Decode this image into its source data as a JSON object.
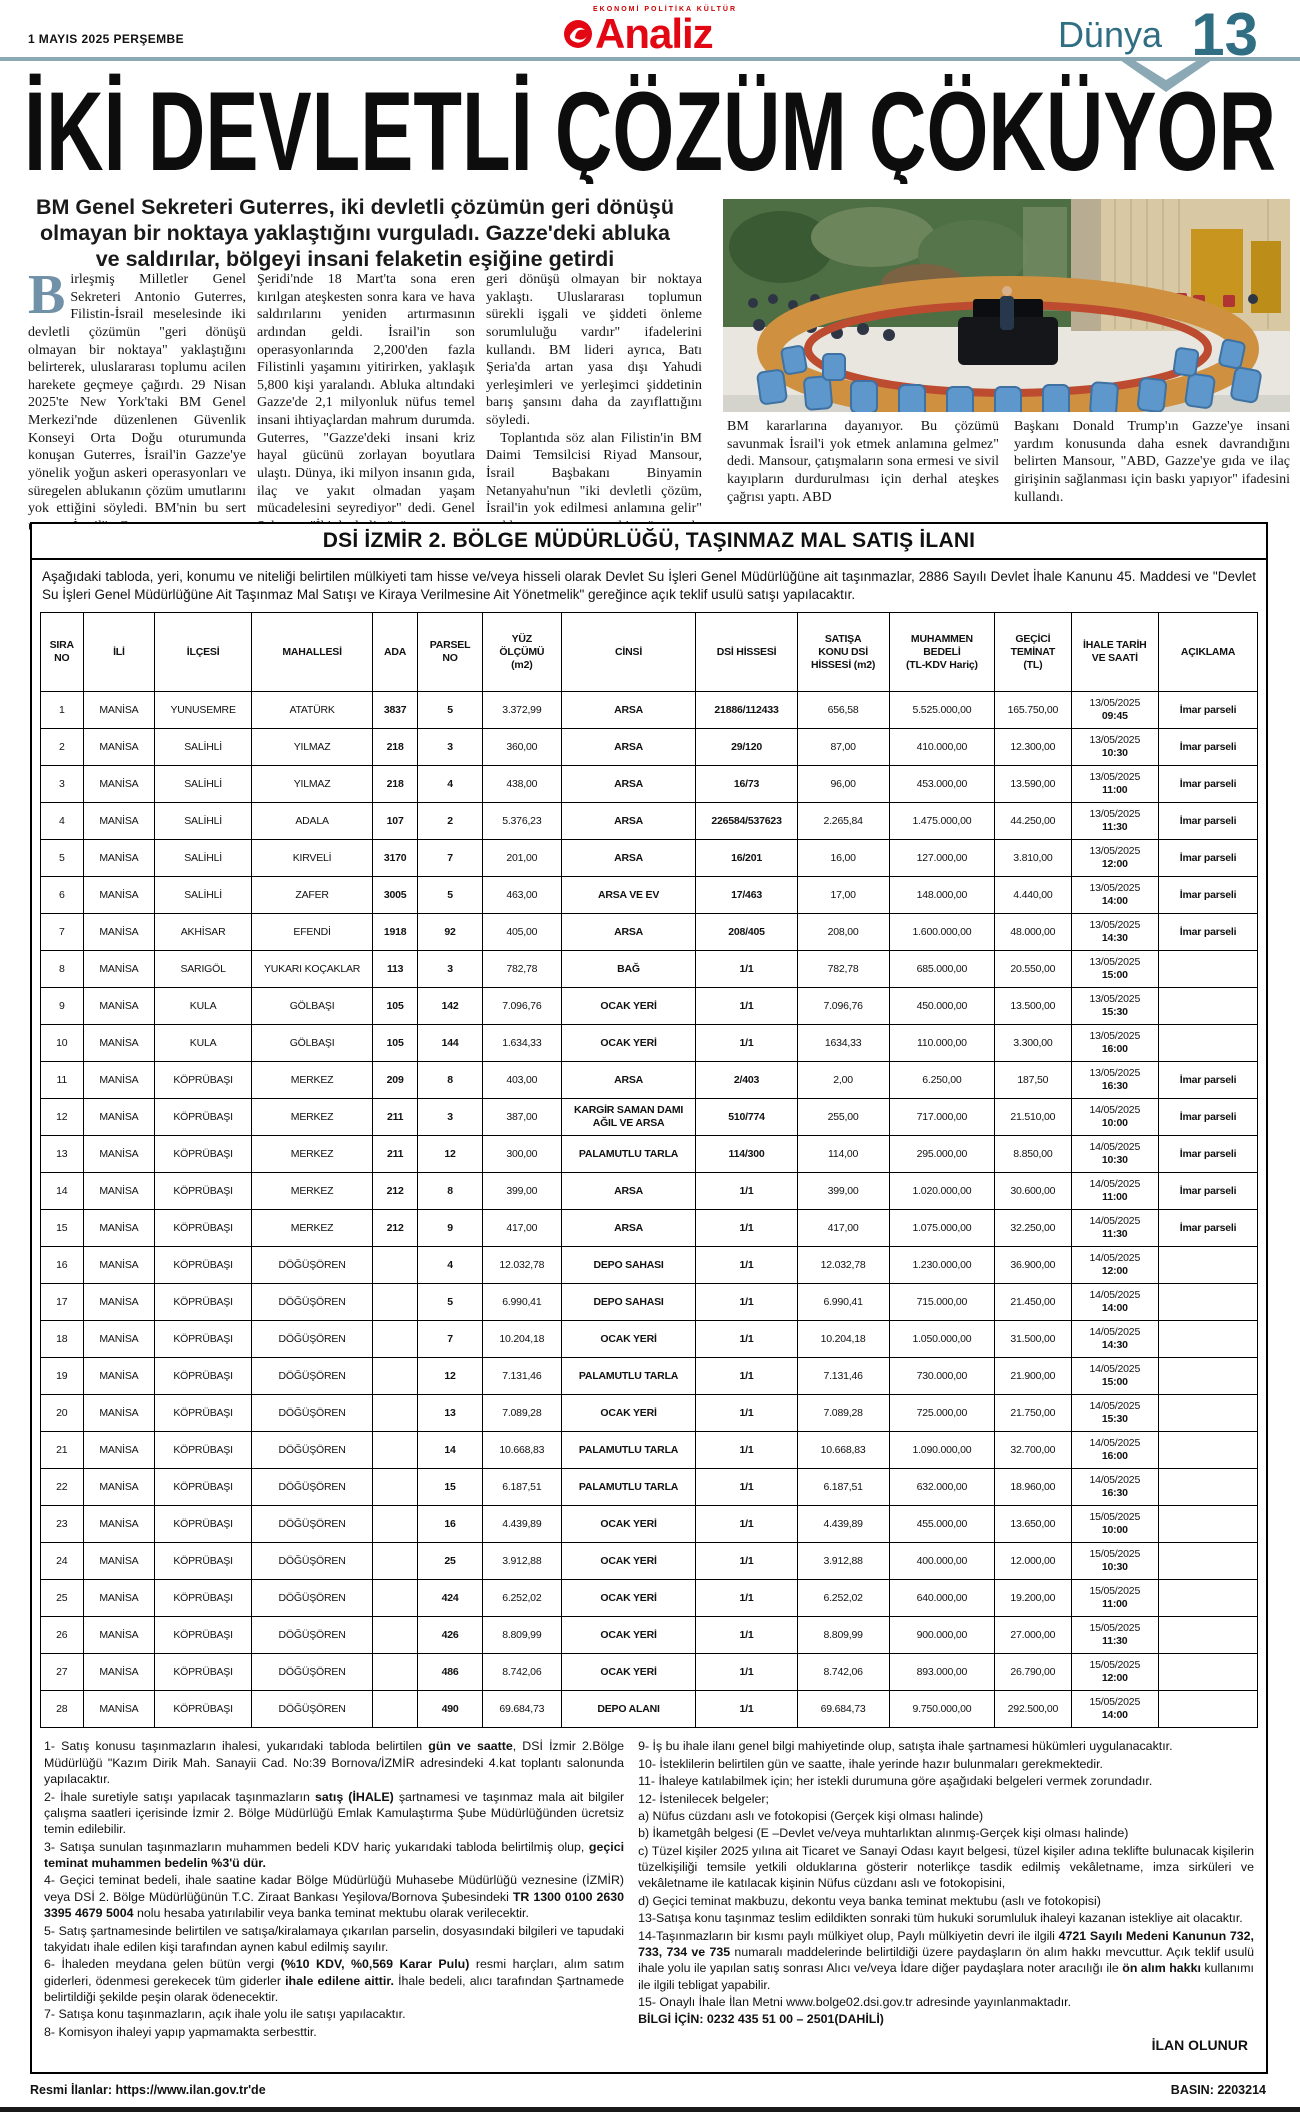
{
  "masthead": {
    "date": "1 MAYIS 2025 PERŞEMBE",
    "logo_top": "EKONOMİ POLİTİKA KÜLTÜR",
    "logo_name": "Analiz",
    "section": "Dünya",
    "page_number": "13",
    "accent_teal": "#2f6e83",
    "rule_color": "#8ba8b5",
    "logo_red": "#e30613"
  },
  "article": {
    "headline": "İKİ DEVLETLİ ÇÖZÜM ÇÖKÜYOR",
    "standfirst": "BM Genel Sekreteri Guterres, iki devletli çözümün geri dönüşü olmayan bir noktaya yaklaştığını vurguladı. Gazze'deki abluka ve saldırılar, bölgeyi insani felaketin eşiğine getirdi",
    "dropcap": "B",
    "columns": [
      [
        "irleşmiş Milletler Genel Sekreteri Antonio Guterres, Filistin-İsrail meselesinde iki devletli çözümün \"geri dönüşü olmayan bir noktaya\" yaklaştığını belirterek, uluslararası toplumu acilen harekete geçmeye çağırdı. 29 Nisan 2025'te New York'taki BM Genel Merkezi'nde düzenlenen Güvenlik Konseyi Orta Doğu oturumunda konuşan Guterres, İsrail'in Gazze'ye yönelik yoğun askeri operasyonları ve süregelen ablukanın çözüm umutlarını yok ettiğini söyledi. BM'nin bu sert uyarısı, İsrail'in Gazze"
      ],
      [
        "Şeridi'nde 18 Mart'ta sona eren kırılgan ateşkesten sonra kara ve hava saldırılarını yeniden artırmasının ardından geldi. İsrail'in son operasyonlarında 2,200'den fazla Filistinli yaşamını yitirirken, yaklaşık 5,800 kişi yaralandı. Abluka altındaki Gazze'de 2,1 milyonluk nüfus temel insani ihtiyaçlardan mahrum durumda. Guterres, \"Gazze'deki insani kriz hayal gücünü zorlayan boyutlara ulaştı. Dünya, iki milyon insanın gıda, ilaç ve yakıt olmadan yaşam mücadelesini seyrediyor\" dedi. Genel Sekreter, \"İki devletli çözüm"
      ],
      [
        "geri dönüşü olmayan bir noktaya yaklaştı. Uluslararası toplumun sürekli işgali ve şiddeti önleme sorumluluğu vardır\" ifadelerini kullandı. BM lideri ayrıca, Batı Şeria'da artan yasa dışı Yahudi yerleşimleri ve yerleşimci şiddetinin barış şansını daha da zayıflattığını söyledi.",
        "Toplantıda söz alan Filistin'in BM Daimi Temsilcisi Riyad Mansour, İsrail Başbakanı Binyamin Netanyahu'nun \"iki devletli çözüm, İsrail'in yok edilmesi anlamına gelir\" açıklamasına sert tepki göstererek, \"Bu saçmalık. İki devletli çözüm,"
      ],
      [
        "BM kararlarına dayanıyor. Bu çözümü savunmak İsrail'i yok etmek anlamına gelmez\" dedi. Mansour, çatışmaların sona ermesi ve sivil kayıpların durdurulması için derhal ateşkes çağrısı yaptı. ABD"
      ],
      [
        "Başkanı Donald Trump'ın Gazze'ye insani yardım konusunda daha esnek davrandığını belirten Mansour, \"ABD, Gazze'ye gıda ve ilaç girişinin sağlanması için baskı yapıyor\" ifadesini kullandı."
      ]
    ]
  },
  "ad": {
    "title": "DSİ İZMİR 2. BÖLGE MÜDÜRLÜĞÜ, TAŞINMAZ MAL SATIŞ İLANI",
    "intro": "Aşağıdaki tabloda, yeri, konumu ve niteliği belirtilen mülkiyeti tam hisse ve/veya hisseli olarak Devlet Su İşleri Genel Müdürlüğüne ait taşınmazlar, 2886 Sayılı Devlet İhale Kanunu 45. Maddesi ve  \"Devlet Su İşleri Genel Müdürlüğüne Ait Taşınmaz Mal Satışı ve Kiraya Verilmesine Ait Yönetmelik\"  gereğince açık teklif usulü satışı yapılacaktır.",
    "table": {
      "headers": [
        "SIRA\nNO",
        "İLİ",
        "İLÇESİ",
        "MAHALLESİ",
        "ADA",
        "PARSEL\nNO",
        "YÜZ\nÖLÇÜMÜ\n(m2)",
        "CİNSİ",
        "DSİ HİSSESİ",
        "SATIŞA\nKONU DSİ\nHİSSESİ (m2)",
        "MUHAMMEN\nBEDELİ\n(TL-KDV Hariç)",
        "GEÇİCİ\nTEMİNAT\n(TL)",
        "İHALE TARİH\nVE SAATİ",
        "AÇIKLAMA"
      ],
      "rows": [
        [
          "1",
          "MANİSA",
          "YUNUSEMRE",
          "ATATÜRK",
          "3837",
          "5",
          "3.372,99",
          "ARSA",
          "21886/112433",
          "656,58",
          "5.525.000,00",
          "165.750,00",
          "13/05/2025\n09:45",
          "İmar parseli"
        ],
        [
          "2",
          "MANİSA",
          "SALİHLİ",
          "YILMAZ",
          "218",
          "3",
          "360,00",
          "ARSA",
          "29/120",
          "87,00",
          "410.000,00",
          "12.300,00",
          "13/05/2025\n10:30",
          "İmar parseli"
        ],
        [
          "3",
          "MANİSA",
          "SALİHLİ",
          "YILMAZ",
          "218",
          "4",
          "438,00",
          "ARSA",
          "16/73",
          "96,00",
          "453.000,00",
          "13.590,00",
          "13/05/2025\n11:00",
          "İmar parseli"
        ],
        [
          "4",
          "MANİSA",
          "SALİHLİ",
          "ADALA",
          "107",
          "2",
          "5.376,23",
          "ARSA",
          "226584/537623",
          "2.265,84",
          "1.475.000,00",
          "44.250,00",
          "13/05/2025\n11:30",
          "İmar parseli"
        ],
        [
          "5",
          "MANİSA",
          "SALİHLİ",
          "KIRVELİ",
          "3170",
          "7",
          "201,00",
          "ARSA",
          "16/201",
          "16,00",
          "127.000,00",
          "3.810,00",
          "13/05/2025\n12:00",
          "İmar parseli"
        ],
        [
          "6",
          "MANİSA",
          "SALİHLİ",
          "ZAFER",
          "3005",
          "5",
          "463,00",
          "ARSA VE EV",
          "17/463",
          "17,00",
          "148.000,00",
          "4.440,00",
          "13/05/2025\n14:00",
          "İmar parseli"
        ],
        [
          "7",
          "MANİSA",
          "AKHİSAR",
          "EFENDİ",
          "1918",
          "92",
          "405,00",
          "ARSA",
          "208/405",
          "208,00",
          "1.600.000,00",
          "48.000,00",
          "13/05/2025\n14:30",
          "İmar parseli"
        ],
        [
          "8",
          "MANİSA",
          "SARIGÖL",
          "YUKARI KOÇAKLAR",
          "113",
          "3",
          "782,78",
          "BAĞ",
          "1/1",
          "782,78",
          "685.000,00",
          "20.550,00",
          "13/05/2025\n15:00",
          ""
        ],
        [
          "9",
          "MANİSA",
          "KULA",
          "GÖLBAŞI",
          "105",
          "142",
          "7.096,76",
          "OCAK YERİ",
          "1/1",
          "7.096,76",
          "450.000,00",
          "13.500,00",
          "13/05/2025\n15:30",
          ""
        ],
        [
          "10",
          "MANİSA",
          "KULA",
          "GÖLBAŞI",
          "105",
          "144",
          "1.634,33",
          "OCAK YERİ",
          "1/1",
          "1634,33",
          "110.000,00",
          "3.300,00",
          "13/05/2025\n16:00",
          ""
        ],
        [
          "11",
          "MANİSA",
          "KÖPRÜBAŞI",
          "MERKEZ",
          "209",
          "8",
          "403,00",
          "ARSA",
          "2/403",
          "2,00",
          "6.250,00",
          "187,50",
          "13/05/2025\n16:30",
          "İmar parseli"
        ],
        [
          "12",
          "MANİSA",
          "KÖPRÜBAŞI",
          "MERKEZ",
          "211",
          "3",
          "387,00",
          "KARGİR SAMAN DAMI AĞIL VE ARSA",
          "510/774",
          "255,00",
          "717.000,00",
          "21.510,00",
          "14/05/2025\n10:00",
          "İmar parseli"
        ],
        [
          "13",
          "MANİSA",
          "KÖPRÜBAŞI",
          "MERKEZ",
          "211",
          "12",
          "300,00",
          "PALAMUTLU TARLA",
          "114/300",
          "114,00",
          "295.000,00",
          "8.850,00",
          "14/05/2025\n10:30",
          "İmar parseli"
        ],
        [
          "14",
          "MANİSA",
          "KÖPRÜBAŞI",
          "MERKEZ",
          "212",
          "8",
          "399,00",
          "ARSA",
          "1/1",
          "399,00",
          "1.020.000,00",
          "30.600,00",
          "14/05/2025\n11:00",
          "İmar parseli"
        ],
        [
          "15",
          "MANİSA",
          "KÖPRÜBAŞI",
          "MERKEZ",
          "212",
          "9",
          "417,00",
          "ARSA",
          "1/1",
          "417,00",
          "1.075.000,00",
          "32.250,00",
          "14/05/2025\n11:30",
          "İmar parseli"
        ],
        [
          "16",
          "MANİSA",
          "KÖPRÜBAŞI",
          "DÖĞÜŞÖREN",
          "",
          "4",
          "12.032,78",
          "DEPO SAHASI",
          "1/1",
          "12.032,78",
          "1.230.000,00",
          "36.900,00",
          "14/05/2025\n12:00",
          ""
        ],
        [
          "17",
          "MANİSA",
          "KÖPRÜBAŞI",
          "DÖĞÜŞÖREN",
          "",
          "5",
          "6.990,41",
          "DEPO SAHASI",
          "1/1",
          "6.990,41",
          "715.000,00",
          "21.450,00",
          "14/05/2025\n14:00",
          ""
        ],
        [
          "18",
          "MANİSA",
          "KÖPRÜBAŞI",
          "DÖĞÜŞÖREN",
          "",
          "7",
          "10.204,18",
          "OCAK YERİ",
          "1/1",
          "10.204,18",
          "1.050.000,00",
          "31.500,00",
          "14/05/2025\n14:30",
          ""
        ],
        [
          "19",
          "MANİSA",
          "KÖPRÜBAŞI",
          "DÖĞÜŞÖREN",
          "",
          "12",
          "7.131,46",
          "PALAMUTLU TARLA",
          "1/1",
          "7.131,46",
          "730.000,00",
          "21.900,00",
          "14/05/2025\n15:00",
          ""
        ],
        [
          "20",
          "MANİSA",
          "KÖPRÜBAŞI",
          "DÖĞÜŞÖREN",
          "",
          "13",
          "7.089,28",
          "OCAK YERİ",
          "1/1",
          "7.089,28",
          "725.000,00",
          "21.750,00",
          "14/05/2025\n15:30",
          ""
        ],
        [
          "21",
          "MANİSA",
          "KÖPRÜBAŞI",
          "DÖĞÜŞÖREN",
          "",
          "14",
          "10.668,83",
          "PALAMUTLU TARLA",
          "1/1",
          "10.668,83",
          "1.090.000,00",
          "32.700,00",
          "14/05/2025\n16:00",
          ""
        ],
        [
          "22",
          "MANİSA",
          "KÖPRÜBAŞI",
          "DÖĞÜŞÖREN",
          "",
          "15",
          "6.187,51",
          "PALAMUTLU TARLA",
          "1/1",
          "6.187,51",
          "632.000,00",
          "18.960,00",
          "14/05/2025\n16:30",
          ""
        ],
        [
          "23",
          "MANİSA",
          "KÖPRÜBAŞI",
          "DÖĞÜŞÖREN",
          "",
          "16",
          "4.439,89",
          "OCAK YERİ",
          "1/1",
          "4.439,89",
          "455.000,00",
          "13.650,00",
          "15/05/2025\n10:00",
          ""
        ],
        [
          "24",
          "MANİSA",
          "KÖPRÜBAŞI",
          "DÖĞÜŞÖREN",
          "",
          "25",
          "3.912,88",
          "OCAK YERİ",
          "1/1",
          "3.912,88",
          "400.000,00",
          "12.000,00",
          "15/05/2025\n10:30",
          ""
        ],
        [
          "25",
          "MANİSA",
          "KÖPRÜBAŞI",
          "DÖĞÜŞÖREN",
          "",
          "424",
          "6.252,02",
          "OCAK YERİ",
          "1/1",
          "6.252,02",
          "640.000,00",
          "19.200,00",
          "15/05/2025\n11:00",
          ""
        ],
        [
          "26",
          "MANİSA",
          "KÖPRÜBAŞI",
          "DÖĞÜŞÖREN",
          "",
          "426",
          "8.809,99",
          "OCAK YERİ",
          "1/1",
          "8.809,99",
          "900.000,00",
          "27.000,00",
          "15/05/2025\n11:30",
          ""
        ],
        [
          "27",
          "MANİSA",
          "KÖPRÜBAŞI",
          "DÖĞÜŞÖREN",
          "",
          "486",
          "8.742,06",
          "OCAK YERİ",
          "1/1",
          "8.742,06",
          "893.000,00",
          "26.790,00",
          "15/05/2025\n12:00",
          ""
        ],
        [
          "28",
          "MANİSA",
          "KÖPRÜBAŞI",
          "DÖĞÜŞÖREN",
          "",
          "490",
          "69.684,73",
          "DEPO ALANI",
          "1/1",
          "69.684,73",
          "9.750.000,00",
          "292.500,00",
          "15/05/2025\n14:00",
          ""
        ]
      ]
    },
    "notes_left": [
      "1- Satış konusu taşınmazların ihalesi, yukarıdaki tabloda belirtilen **gün ve saatte**, DSİ İzmir 2.Bölge Müdürlüğü \"Kazım Dirik Mah. Sanayii Cad. No:39 Bornova/İZMİR adresindeki 4.kat toplantı salonunda yapılacaktır.",
      "2- İhale suretiyle satışı yapılacak taşınmazların **satış (İHALE)** şartnamesi ve taşınmaz mala ait bilgiler çalışma saatleri içerisinde İzmir 2. Bölge Müdürlüğü Emlak Kamulaştırma Şube Müdürlüğünden ücretsiz temin edilebilir.",
      "3- Satışa sunulan taşınmazların muhammen bedeli KDV hariç yukarıdaki tabloda belirtilmiş olup, **geçici teminat muhammen bedelin %3'ü dür.**",
      "4- Geçici teminat bedeli, ihale saatine kadar Bölge Müdürlüğü Muhasebe Müdürlüğü veznesine (İZMİR)  veya DSİ 2. Bölge Müdürlüğünün T.C. Ziraat Bankası Yeşilova/Bornova Şubesindeki **TR 1300 0100 2630 3395 4679 5004** nolu hesaba yatırılabilir veya banka teminat mektubu olarak verilecektir.",
      "5- Satış şartnamesinde belirtilen ve satışa/kiralamaya çıkarılan parselin, dosyasındaki bilgileri ve tapudaki takyidatı ihale edilen kişi tarafından aynen kabul edilmiş sayılır.",
      "6- İhaleden meydana gelen bütün vergi **(%10 KDV, %0,569 Karar Pulu)** resmi harçları, alım satım giderleri, ödenmesi gerekecek tüm giderler **ihale edilene aittir.** İhale bedeli, alıcı tarafından Şartnamede belirtildiği şekilde peşin olarak ödenecektir.",
      "7- Satışa konu taşınmazların, açık ihale yolu ile satışı yapılacaktır.",
      "8- Komisyon ihaleyi yapıp yapmamakta serbesttir."
    ],
    "notes_right": [
      "9- İş bu ihale ilanı genel bilgi mahiyetinde olup, satışta ihale şartnamesi hükümleri uygulanacaktır.",
      "10- İsteklilerin belirtilen gün ve saatte, ihale yerinde hazır bulunmaları gerekmektedir.",
      "11- İhaleye katılabilmek için; her istekli durumuna göre aşağıdaki belgeleri vermek zorundadır.",
      "12- İstenilecek belgeler;",
      "a) Nüfus cüzdanı aslı ve fotokopisi (Gerçek kişi olması halinde)",
      "b) İkametgâh belgesi (E –Devlet ve/veya muhtarlıktan alınmış-Gerçek kişi olması halinde)",
      "c) Tüzel kişiler 2025 yılına ait Ticaret ve Sanayi Odası kayıt belgesi, tüzel kişiler adına teklifte bulunacak kişilerin tüzelkişiliği temsile yetkili olduklarına gösterir noterlikçe tasdik edilmiş vekâletname, imza sirküleri ve vekâletname ile katılacak kişinin Nüfus cüzdanı aslı ve fotokopisini,",
      "d) Geçici teminat makbuzu, dekontu veya banka teminat mektubu (aslı ve fotokopisi)",
      "13-Satışa konu taşınmaz teslim edildikten sonraki tüm hukuki sorumluluk ihaleyi kazanan istekliye ait olacaktır.",
      "14-Taşınmazların bir kısmı paylı mülkiyet olup, Paylı mülkiyetin devri ile ilgili **4721 Sayılı Medeni Kanunun 732, 733, 734 ve 735** numaralı maddelerinde belirtildiği üzere paydaşların ön alım hakkı mevcuttur. Açık teklif usulü ihale yolu ile yapılan satış sonrası Alıcı ve/veya İdare diğer paydaşlara noter aracılığı ile **ön alım hakkı** kullanımı ile ilgili tebligat yapabilir.",
      "15- Onaylı İhale İlan Metni  www.bolge02.dsi.gov.tr adresinde yayınlanmaktadır.",
      "**BİLGİ İÇİN: 0232 435 51 00 – 2501(DAHİLİ)**"
    ],
    "closing": "İLAN OLUNUR",
    "press_no": "BASIN: 2203214"
  },
  "footer": {
    "official_ads": "Resmi İlanlar: https://www.ilan.gov.tr'de"
  }
}
